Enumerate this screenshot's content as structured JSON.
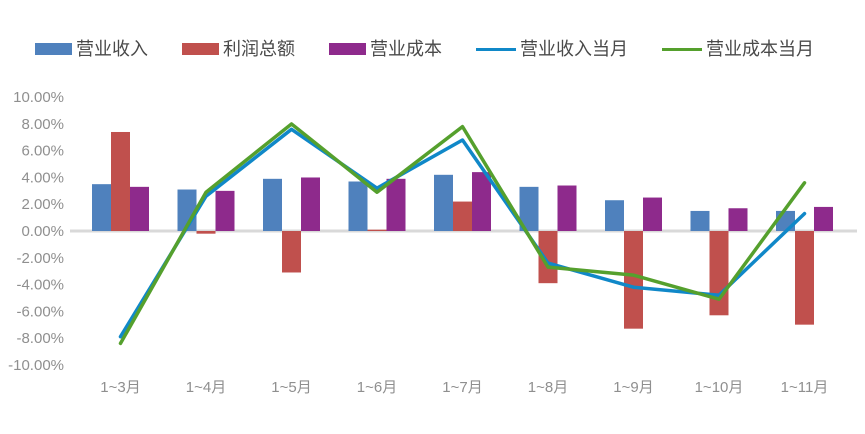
{
  "page": {
    "background": "#FFFFFF"
  },
  "legend": {
    "items": [
      {
        "label": "营业收入",
        "swatch": "bar",
        "color": "#4F81BD"
      },
      {
        "label": "利润总额",
        "swatch": "bar",
        "color": "#C0504D"
      },
      {
        "label": "营业成本",
        "swatch": "bar",
        "color": "#8E2A8C"
      },
      {
        "label": "营业收入当月",
        "swatch": "line",
        "color": "#1088C8"
      },
      {
        "label": "营业成本当月",
        "swatch": "line",
        "color": "#55A02D"
      }
    ]
  },
  "chart_data": {
    "type": "combo",
    "title": "",
    "xlabel": "",
    "ylabel": "",
    "categories": [
      "1~3月",
      "1~4月",
      "1~5月",
      "1~6月",
      "1~7月",
      "1~8月",
      "1~9月",
      "1~10月",
      "1~11月"
    ],
    "series": [
      {
        "name": "营业收入",
        "chart": "bar",
        "color": "#4F81BD",
        "values": [
          3.5,
          3.1,
          3.9,
          3.7,
          4.2,
          3.3,
          2.3,
          1.5,
          1.5
        ]
      },
      {
        "name": "利润总额",
        "chart": "bar",
        "color": "#C0504D",
        "values": [
          7.4,
          -0.2,
          -3.1,
          0.1,
          2.2,
          -3.9,
          -7.3,
          -6.3,
          -7.0
        ]
      },
      {
        "name": "营业成本",
        "chart": "bar",
        "color": "#8E2A8C",
        "values": [
          3.3,
          3.0,
          4.0,
          3.9,
          4.4,
          3.4,
          2.5,
          1.7,
          1.8
        ]
      },
      {
        "name": "营业收入当月",
        "chart": "line",
        "color": "#1088C8",
        "values": [
          -7.9,
          2.6,
          7.6,
          3.2,
          6.8,
          -2.4,
          -4.2,
          -4.8,
          1.3
        ]
      },
      {
        "name": "营业成本当月",
        "chart": "line",
        "color": "#55A02D",
        "values": [
          -8.4,
          2.9,
          8.0,
          2.9,
          7.8,
          -2.7,
          -3.3,
          -5.1,
          3.6
        ]
      }
    ],
    "y_axis": {
      "min": -10,
      "max": 10,
      "tick_step": 2,
      "tick_labels": [
        "10.00%",
        "8.00%",
        "6.00%",
        "4.00%",
        "2.00%",
        "0.00%",
        "-2.00%",
        "-4.00%",
        "-6.00%",
        "-8.00%",
        "-10.00%"
      ]
    },
    "grid": "zero-line-only",
    "zero_line_color": "#D9D9D9",
    "axis_text_color": "#8F8F8F",
    "legend_position": "top"
  }
}
